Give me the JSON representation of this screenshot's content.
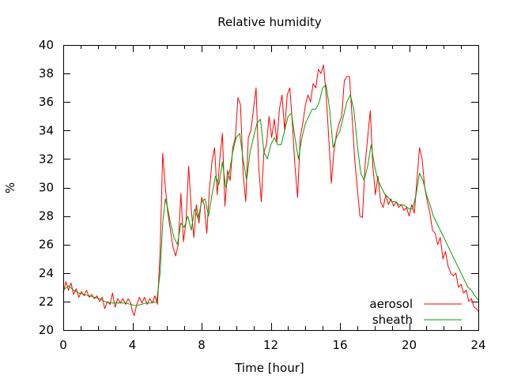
{
  "chart_data": {
    "type": "line",
    "title": "Relative humidity",
    "xlabel": "Time [hour]",
    "ylabel": "%",
    "xlim": [
      0,
      24
    ],
    "ylim": [
      20,
      40
    ],
    "xticks": [
      0,
      4,
      8,
      12,
      16,
      20,
      24
    ],
    "yticks": [
      20,
      22,
      24,
      26,
      28,
      30,
      32,
      34,
      36,
      38,
      40
    ],
    "grid": false,
    "legend_position": "bottom-right",
    "series": [
      {
        "name": "aerosol",
        "color": "#ff0000",
        "points": [
          [
            0,
            22.6
          ],
          [
            0.15,
            23.4
          ],
          [
            0.3,
            22.8
          ],
          [
            0.45,
            23.3
          ],
          [
            0.6,
            22.5
          ],
          [
            0.75,
            22.9
          ],
          [
            0.9,
            22.3
          ],
          [
            1.05,
            22.7
          ],
          [
            1.2,
            22.4
          ],
          [
            1.35,
            22.8
          ],
          [
            1.5,
            22.3
          ],
          [
            1.65,
            22.5
          ],
          [
            1.8,
            22.2
          ],
          [
            1.95,
            22.4
          ],
          [
            2.1,
            22.0
          ],
          [
            2.25,
            22.3
          ],
          [
            2.4,
            21.5
          ],
          [
            2.55,
            22.0
          ],
          [
            2.7,
            21.8
          ],
          [
            2.85,
            22.6
          ],
          [
            3.0,
            21.6
          ],
          [
            3.15,
            22.2
          ],
          [
            3.3,
            21.9
          ],
          [
            3.45,
            22.2
          ],
          [
            3.6,
            21.8
          ],
          [
            3.75,
            22.2
          ],
          [
            3.9,
            21.9
          ],
          [
            4.0,
            21.3
          ],
          [
            4.1,
            21.0
          ],
          [
            4.25,
            21.8
          ],
          [
            4.4,
            22.3
          ],
          [
            4.55,
            21.9
          ],
          [
            4.7,
            22.3
          ],
          [
            4.85,
            21.8
          ],
          [
            5.0,
            22.2
          ],
          [
            5.15,
            21.9
          ],
          [
            5.3,
            22.4
          ],
          [
            5.45,
            21.8
          ],
          [
            5.6,
            25.5
          ],
          [
            5.75,
            32.4
          ],
          [
            5.9,
            30.0
          ],
          [
            6.05,
            28.2
          ],
          [
            6.2,
            27.0
          ],
          [
            6.35,
            25.8
          ],
          [
            6.5,
            25.2
          ],
          [
            6.65,
            26.0
          ],
          [
            6.8,
            29.6
          ],
          [
            6.95,
            26.2
          ],
          [
            7.1,
            27.6
          ],
          [
            7.25,
            31.5
          ],
          [
            7.4,
            28.5
          ],
          [
            7.55,
            26.5
          ],
          [
            7.7,
            28.8
          ],
          [
            7.85,
            27.5
          ],
          [
            8.0,
            29.3
          ],
          [
            8.15,
            28.8
          ],
          [
            8.3,
            26.8
          ],
          [
            8.45,
            29.8
          ],
          [
            8.6,
            31.8
          ],
          [
            8.75,
            32.8
          ],
          [
            8.9,
            29.5
          ],
          [
            9.05,
            32.0
          ],
          [
            9.2,
            33.8
          ],
          [
            9.35,
            28.7
          ],
          [
            9.5,
            31.2
          ],
          [
            9.65,
            30.5
          ],
          [
            9.8,
            32.8
          ],
          [
            9.95,
            33.5
          ],
          [
            10.1,
            36.3
          ],
          [
            10.25,
            35.8
          ],
          [
            10.4,
            31.0
          ],
          [
            10.55,
            29.0
          ],
          [
            10.7,
            33.5
          ],
          [
            10.85,
            34.0
          ],
          [
            11.0,
            35.5
          ],
          [
            11.15,
            37.0
          ],
          [
            11.3,
            31.5
          ],
          [
            11.45,
            29.0
          ],
          [
            11.6,
            32.5
          ],
          [
            11.75,
            33.0
          ],
          [
            11.9,
            35.0
          ],
          [
            12.05,
            33.5
          ],
          [
            12.2,
            34.8
          ],
          [
            12.35,
            33.2
          ],
          [
            12.5,
            35.5
          ],
          [
            12.65,
            36.5
          ],
          [
            12.8,
            34.0
          ],
          [
            12.95,
            36.5
          ],
          [
            13.1,
            37.0
          ],
          [
            13.25,
            34.5
          ],
          [
            13.4,
            31.5
          ],
          [
            13.55,
            29.3
          ],
          [
            13.7,
            33.5
          ],
          [
            13.85,
            34.5
          ],
          [
            14.0,
            35.8
          ],
          [
            14.15,
            36.5
          ],
          [
            14.3,
            36.0
          ],
          [
            14.45,
            37.3
          ],
          [
            14.6,
            37.0
          ],
          [
            14.75,
            38.3
          ],
          [
            14.9,
            38.0
          ],
          [
            15.05,
            38.6
          ],
          [
            15.2,
            36.5
          ],
          [
            15.35,
            33.5
          ],
          [
            15.5,
            30.3
          ],
          [
            15.65,
            32.5
          ],
          [
            15.8,
            33.8
          ],
          [
            15.95,
            34.5
          ],
          [
            16.1,
            35.0
          ],
          [
            16.25,
            37.5
          ],
          [
            16.4,
            37.8
          ],
          [
            16.55,
            37.8
          ],
          [
            16.7,
            35.0
          ],
          [
            16.85,
            32.0
          ],
          [
            17.0,
            30.0
          ],
          [
            17.15,
            28.0
          ],
          [
            17.3,
            27.9
          ],
          [
            17.45,
            31.5
          ],
          [
            17.6,
            33.5
          ],
          [
            17.75,
            35.4
          ],
          [
            17.9,
            31.5
          ],
          [
            18.05,
            29.5
          ],
          [
            18.2,
            30.8
          ],
          [
            18.35,
            29.0
          ],
          [
            18.5,
            28.6
          ],
          [
            18.65,
            29.5
          ],
          [
            18.8,
            28.8
          ],
          [
            18.95,
            29.2
          ],
          [
            19.1,
            28.7
          ],
          [
            19.25,
            29.0
          ],
          [
            19.4,
            28.6
          ],
          [
            19.55,
            28.8
          ],
          [
            19.7,
            28.4
          ],
          [
            19.85,
            28.6
          ],
          [
            20.0,
            28.0
          ],
          [
            20.15,
            28.8
          ],
          [
            20.3,
            28.2
          ],
          [
            20.45,
            30.5
          ],
          [
            20.6,
            32.8
          ],
          [
            20.75,
            32.0
          ],
          [
            20.9,
            30.0
          ],
          [
            21.05,
            29.0
          ],
          [
            21.2,
            28.2
          ],
          [
            21.35,
            27.0
          ],
          [
            21.5,
            26.8
          ],
          [
            21.65,
            26.0
          ],
          [
            21.8,
            26.5
          ],
          [
            21.95,
            25.0
          ],
          [
            22.1,
            25.5
          ],
          [
            22.25,
            24.5
          ],
          [
            22.4,
            24.0
          ],
          [
            22.55,
            23.8
          ],
          [
            22.7,
            24.0
          ],
          [
            22.85,
            23.0
          ],
          [
            23.0,
            23.2
          ],
          [
            23.15,
            22.6
          ],
          [
            23.3,
            22.8
          ],
          [
            23.45,
            22.0
          ],
          [
            23.6,
            22.2
          ],
          [
            23.75,
            21.6
          ],
          [
            23.9,
            21.5
          ],
          [
            24.0,
            21.3
          ]
        ]
      },
      {
        "name": "sheath",
        "color": "#00a000",
        "points": [
          [
            0,
            22.8
          ],
          [
            0.3,
            23.1
          ],
          [
            0.6,
            22.8
          ],
          [
            0.9,
            22.6
          ],
          [
            1.2,
            22.5
          ],
          [
            1.5,
            22.4
          ],
          [
            1.8,
            22.3
          ],
          [
            2.1,
            22.2
          ],
          [
            2.4,
            22.0
          ],
          [
            2.7,
            21.9
          ],
          [
            3.0,
            21.9
          ],
          [
            3.3,
            21.9
          ],
          [
            3.6,
            21.9
          ],
          [
            3.9,
            21.8
          ],
          [
            4.2,
            21.7
          ],
          [
            4.5,
            21.8
          ],
          [
            4.8,
            21.9
          ],
          [
            5.1,
            21.9
          ],
          [
            5.4,
            22.0
          ],
          [
            5.6,
            24.0
          ],
          [
            5.75,
            27.5
          ],
          [
            5.9,
            29.2
          ],
          [
            6.05,
            28.5
          ],
          [
            6.2,
            27.5
          ],
          [
            6.4,
            26.5
          ],
          [
            6.6,
            26.0
          ],
          [
            6.8,
            27.5
          ],
          [
            7.0,
            27.2
          ],
          [
            7.2,
            28.0
          ],
          [
            7.4,
            27.0
          ],
          [
            7.6,
            28.5
          ],
          [
            7.8,
            27.8
          ],
          [
            8.0,
            29.0
          ],
          [
            8.2,
            29.2
          ],
          [
            8.4,
            28.0
          ],
          [
            8.6,
            29.5
          ],
          [
            8.8,
            30.8
          ],
          [
            9.0,
            30.2
          ],
          [
            9.2,
            31.8
          ],
          [
            9.4,
            30.0
          ],
          [
            9.6,
            31.0
          ],
          [
            9.8,
            32.5
          ],
          [
            10.0,
            33.5
          ],
          [
            10.2,
            33.8
          ],
          [
            10.4,
            32.0
          ],
          [
            10.6,
            30.5
          ],
          [
            10.8,
            32.5
          ],
          [
            11.0,
            33.5
          ],
          [
            11.2,
            34.5
          ],
          [
            11.4,
            34.8
          ],
          [
            11.6,
            32.5
          ],
          [
            11.8,
            32.0
          ],
          [
            12.0,
            33.0
          ],
          [
            12.2,
            33.5
          ],
          [
            12.4,
            33.0
          ],
          [
            12.6,
            33.0
          ],
          [
            12.8,
            34.0
          ],
          [
            13.0,
            35.0
          ],
          [
            13.2,
            35.2
          ],
          [
            13.4,
            33.5
          ],
          [
            13.6,
            32.0
          ],
          [
            13.8,
            33.5
          ],
          [
            14.0,
            34.5
          ],
          [
            14.2,
            35.0
          ],
          [
            14.4,
            35.5
          ],
          [
            14.6,
            35.5
          ],
          [
            14.8,
            36.0
          ],
          [
            15.0,
            37.0
          ],
          [
            15.2,
            37.2
          ],
          [
            15.4,
            35.5
          ],
          [
            15.6,
            32.8
          ],
          [
            15.8,
            33.5
          ],
          [
            16.0,
            34.0
          ],
          [
            16.2,
            35.0
          ],
          [
            16.4,
            36.0
          ],
          [
            16.6,
            36.5
          ],
          [
            16.8,
            35.5
          ],
          [
            17.0,
            33.0
          ],
          [
            17.2,
            31.0
          ],
          [
            17.4,
            30.5
          ],
          [
            17.6,
            31.5
          ],
          [
            17.8,
            33.0
          ],
          [
            18.0,
            31.5
          ],
          [
            18.2,
            30.5
          ],
          [
            18.4,
            30.0
          ],
          [
            18.6,
            29.5
          ],
          [
            18.8,
            29.3
          ],
          [
            19.0,
            29.0
          ],
          [
            19.2,
            29.0
          ],
          [
            19.4,
            28.8
          ],
          [
            19.6,
            28.8
          ],
          [
            19.8,
            28.7
          ],
          [
            20.0,
            28.5
          ],
          [
            20.2,
            28.5
          ],
          [
            20.4,
            29.5
          ],
          [
            20.6,
            31.0
          ],
          [
            20.8,
            30.5
          ],
          [
            21.0,
            29.5
          ],
          [
            21.2,
            28.8
          ],
          [
            21.4,
            28.0
          ],
          [
            21.6,
            27.5
          ],
          [
            21.8,
            27.0
          ],
          [
            22.0,
            26.5
          ],
          [
            22.2,
            26.0
          ],
          [
            22.4,
            25.5
          ],
          [
            22.6,
            25.0
          ],
          [
            22.8,
            24.5
          ],
          [
            23.0,
            24.0
          ],
          [
            23.2,
            23.5
          ],
          [
            23.4,
            23.0
          ],
          [
            23.6,
            22.8
          ],
          [
            23.8,
            22.4
          ],
          [
            24.0,
            22.1
          ]
        ]
      }
    ]
  }
}
